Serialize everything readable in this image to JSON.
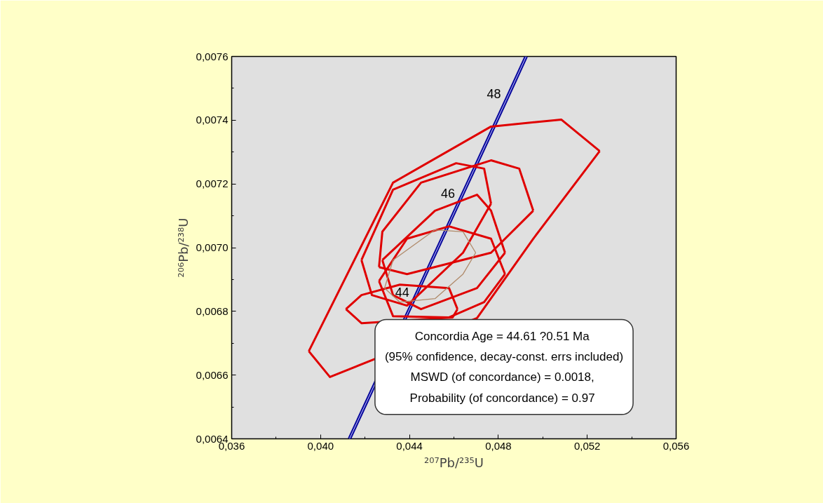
{
  "chart_data": {
    "type": "line",
    "xlabel": "²⁰⁷Pb/²³⁵U",
    "ylabel": "²⁰⁶Pb/²³⁸U",
    "xlim": [
      0.036,
      0.056
    ],
    "ylim": [
      0.0064,
      0.0076
    ],
    "xticks": [
      {
        "value": 0.036,
        "label": "0,036"
      },
      {
        "value": 0.04,
        "label": "0,040"
      },
      {
        "value": 0.044,
        "label": "0,044"
      },
      {
        "value": 0.048,
        "label": "0,048"
      },
      {
        "value": 0.052,
        "label": "0,052"
      },
      {
        "value": 0.056,
        "label": "0,056"
      }
    ],
    "yticks": [
      {
        "value": 0.0064,
        "label": "0,0064"
      },
      {
        "value": 0.0066,
        "label": "0,0066"
      },
      {
        "value": 0.0068,
        "label": "0,0068"
      },
      {
        "value": 0.007,
        "label": "0,0070"
      },
      {
        "value": 0.0072,
        "label": "0,0072"
      },
      {
        "value": 0.0074,
        "label": "0,0074"
      },
      {
        "value": 0.0076,
        "label": "0,0076"
      }
    ],
    "grid": false,
    "marker": "none",
    "series": [
      {
        "color": "#0a0a9c",
        "x": [
          0.0413,
          0.04424,
          0.0463,
          0.04837,
          0.04925
        ],
        "values": [
          0.0064,
          0.006843,
          0.007154,
          0.007466,
          0.0076
        ]
      },
      {
        "color": "#e00000",
        "x": [
          0.03947,
          0.04326,
          0.04767,
          0.05083,
          0.05256
        ],
        "values": [
          0.006675,
          0.007204,
          0.00738,
          0.007402,
          0.007303
        ]
      },
      {
        "color": "#e00000",
        "x": [
          0.03947,
          0.04042,
          0.04704,
          0.04957,
          0.05256
        ],
        "values": [
          0.006675,
          0.006594,
          0.006779,
          0.007028,
          0.007303
        ]
      },
      {
        "color": "#e00000",
        "x": [
          0.04184,
          0.04326,
          0.0461,
          0.04736,
          0.04767
        ],
        "values": [
          0.006961,
          0.007182,
          0.007265,
          0.007248,
          0.007138
        ]
      },
      {
        "color": "#e00000",
        "x": [
          0.04184,
          0.04231,
          0.04389,
          0.04641,
          0.04767
        ],
        "values": [
          0.006961,
          0.006851,
          0.006818,
          0.006984,
          0.007138
        ]
      },
      {
        "color": "#e00000",
        "x": [
          0.04263,
          0.04278,
          0.04452,
          0.04767,
          0.04894,
          0.04957
        ],
        "values": [
          0.006939,
          0.00705,
          0.007204,
          0.007274,
          0.007248,
          0.007116
        ]
      },
      {
        "color": "#e00000",
        "x": [
          0.04263,
          0.04389,
          0.04767,
          0.04957
        ],
        "values": [
          0.006939,
          0.006917,
          0.006984,
          0.007116
        ]
      },
      {
        "color": "#e00000",
        "x": [
          0.04278,
          0.04515,
          0.04704,
          0.04767,
          0.0483
        ],
        "values": [
          0.006961,
          0.007116,
          0.007166,
          0.007116,
          0.006984
        ]
      },
      {
        "color": "#e00000",
        "x": [
          0.04278,
          0.04326,
          0.04452,
          0.04704,
          0.0483
        ],
        "values": [
          0.006961,
          0.006851,
          0.006807,
          0.006873,
          0.006984
        ]
      },
      {
        "color": "#e00000",
        "x": [
          0.04263,
          0.04389,
          0.04578,
          0.04767,
          0.0483
        ],
        "values": [
          0.006895,
          0.007028,
          0.007067,
          0.007028,
          0.006917
        ]
      },
      {
        "color": "#e00000",
        "x": [
          0.04263,
          0.04326,
          0.04578,
          0.04736,
          0.0483
        ],
        "values": [
          0.006895,
          0.006785,
          0.006781,
          0.006829,
          0.006917
        ]
      },
      {
        "color": "#e00000",
        "x": [
          0.04114,
          0.04184,
          0.04357,
          0.04578,
          0.04616
        ],
        "values": [
          0.006807,
          0.006851,
          0.006884,
          0.006873,
          0.006807
        ]
      },
      {
        "color": "#e00000",
        "x": [
          0.04114,
          0.04184,
          0.04594,
          0.04616
        ],
        "values": [
          0.006807,
          0.006763,
          0.006781,
          0.006807
        ]
      },
      {
        "color": "#b08a6a",
        "x": [
          0.04288,
          0.04326,
          0.04515,
          0.04641,
          0.04698
        ],
        "values": [
          0.006873,
          0.006961,
          0.007056,
          0.00705,
          0.006984
        ]
      },
      {
        "color": "#b08a6a",
        "x": [
          0.04288,
          0.04357,
          0.04515,
          0.04641,
          0.04698
        ],
        "values": [
          0.006873,
          0.006829,
          0.00684,
          0.006917,
          0.006984
        ]
      }
    ],
    "annotations": [
      {
        "text": "48",
        "x": 0.04837,
        "y": 0.007466
      },
      {
        "text": "46",
        "x": 0.0463,
        "y": 0.007154
      },
      {
        "text": "44",
        "x": 0.04424,
        "y": 0.006843
      },
      "Concordia  Age = 44.61 ?0.51 Ma",
      "(95% confidence, decay-const. errs included)",
      "MSWD  (of concordance) = 0.0018,",
      "Probability  (of concordance) = 0.97"
    ]
  }
}
